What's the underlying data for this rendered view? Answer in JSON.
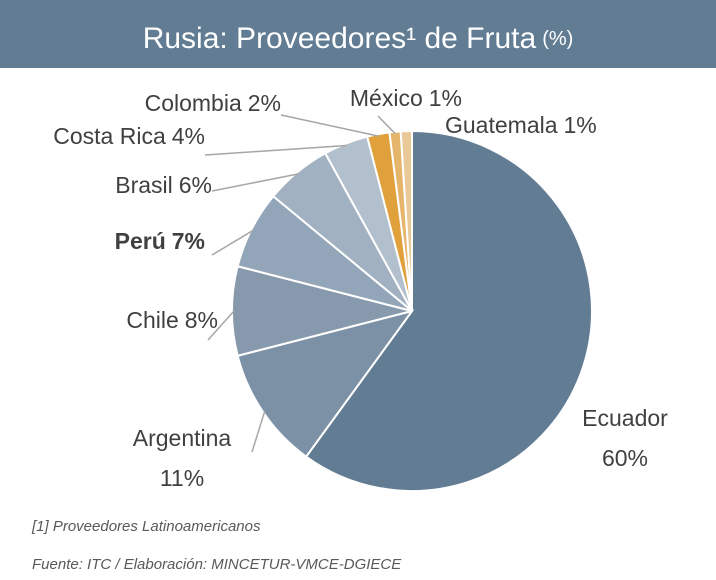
{
  "chart_data": {
    "type": "pie",
    "title": "Rusia: Proveedores¹ de Fruta",
    "title_unit": "(%)",
    "categories": [
      "Ecuador",
      "Argentina",
      "Chile",
      "Perú",
      "Brasil",
      "Costa Rica",
      "Colombia",
      "México",
      "Guatemala"
    ],
    "values": [
      60,
      11,
      8,
      7,
      6,
      4,
      2,
      1,
      1
    ],
    "value_labels": [
      "60%",
      "11%",
      "8%",
      "7%",
      "6%",
      "4%",
      "2%",
      "1%",
      "1%"
    ],
    "colors": [
      "#627c94",
      "#7c90a6",
      "#8799ad",
      "#93a5b8",
      "#a1b1c2",
      "#b2bfcd",
      "#e0a03c",
      "#e6b56c",
      "#e9c998"
    ],
    "notes": [
      "[1] Proveedores  Latinoamericanos",
      "Fuente: ITC / Elaboración: MINCETUR-VMCE-DGIECE"
    ]
  }
}
